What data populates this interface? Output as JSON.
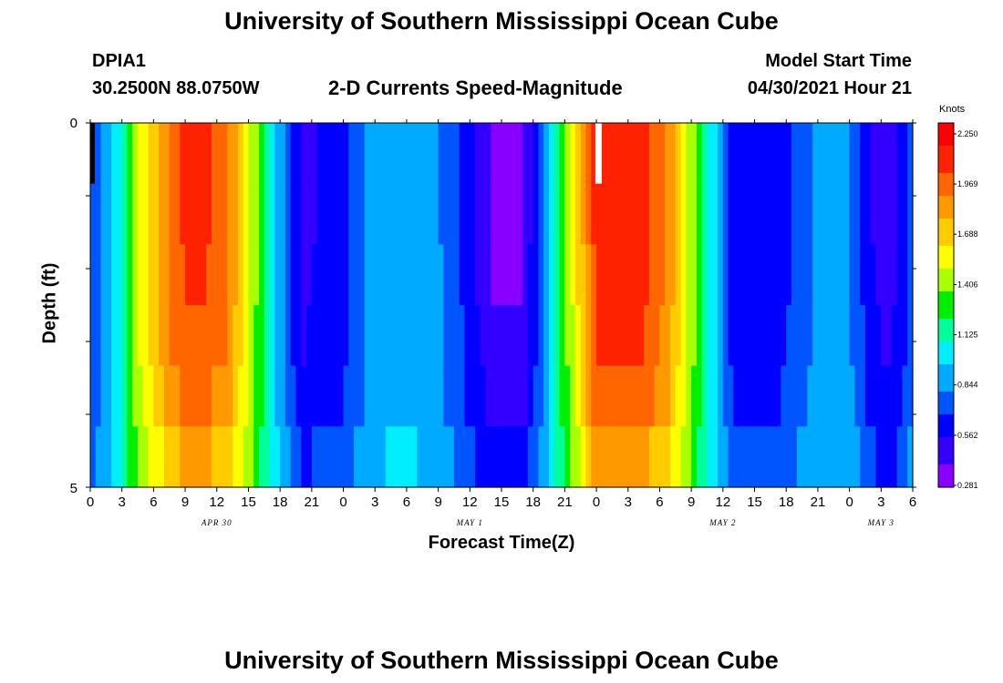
{
  "page": {
    "title_top": "University of Southern Mississippi Ocean Cube",
    "title_bottom": "University of Southern Mississippi Ocean Cube",
    "station_id": "DPIA1",
    "station_coords": "30.2500N  88.0750W",
    "plot_title": "2-D Currents Speed-Magnitude",
    "model_start_label": "Model Start Time",
    "model_start_value": "04/30/2021 Hour 21"
  },
  "colors": {
    "palette": [
      "#8800ff",
      "#3300ff",
      "#0000ff",
      "#0055ff",
      "#00aaff",
      "#00eeff",
      "#00ff99",
      "#00ee00",
      "#aaff00",
      "#ffff00",
      "#ffcc00",
      "#ff9900",
      "#ff6600",
      "#ff2200",
      "#ff0000"
    ],
    "missing_data": "#ffffff",
    "first_column": "#000000"
  },
  "chart_data": {
    "type": "heatmap",
    "title": "2-D Currents Speed-Magnitude",
    "xlabel": "Forecast Time(Z)",
    "ylabel": "Depth (ft)",
    "units": "Knots",
    "y_tick_labels": [
      "0",
      "5"
    ],
    "ylim": [
      0,
      5
    ],
    "x_hours_range": [
      0,
      78
    ],
    "x_tick_labels": [
      "0",
      "3",
      "6",
      "9",
      "12",
      "15",
      "18",
      "21",
      "0",
      "3",
      "6",
      "9",
      "12",
      "15",
      "18",
      "21",
      "0",
      "3",
      "6",
      "9",
      "12",
      "15",
      "18",
      "21",
      "0",
      "3",
      "6"
    ],
    "date_labels": [
      {
        "label": "APR 30",
        "hour": 12
      },
      {
        "label": "MAY 1",
        "hour": 36
      },
      {
        "label": "MAY 2",
        "hour": 60
      },
      {
        "label": "MAY 3",
        "hour": 75
      }
    ],
    "colorbar_labels": [
      "2.250",
      "1.969",
      "1.688",
      "1.406",
      "1.125",
      "0.844",
      "0.562",
      "0.281"
    ],
    "colorbar_range": [
      0.281,
      2.25
    ],
    "depth_layer_factors": [
      1.0,
      1.0,
      0.98,
      0.94,
      0.88,
      0.72
    ],
    "speed_profile": {
      "hours": [
        0,
        2,
        5,
        8,
        10,
        13,
        15,
        18,
        20,
        24,
        27,
        30,
        33,
        36,
        38,
        41,
        43,
        47,
        48,
        52,
        55,
        58,
        61,
        64,
        67,
        70,
        72,
        74,
        76,
        78
      ],
      "values": [
        0.65,
        0.9,
        1.55,
        1.95,
        2.05,
        1.9,
        1.5,
        0.85,
        0.5,
        0.62,
        0.88,
        0.92,
        0.82,
        0.6,
        0.4,
        0.38,
        0.8,
        1.8,
        2.05,
        2.1,
        1.8,
        1.2,
        0.6,
        0.55,
        0.7,
        0.9,
        0.82,
        0.55,
        0.48,
        0.75
      ]
    }
  }
}
